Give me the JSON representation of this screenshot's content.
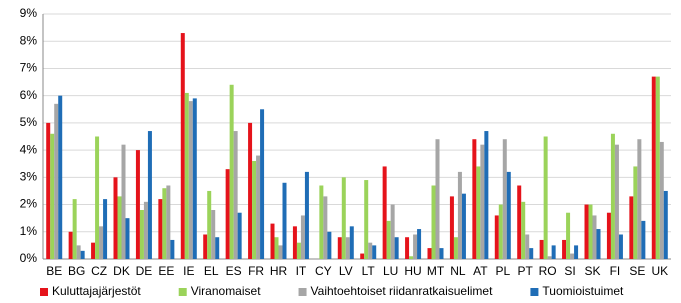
{
  "chart_data": {
    "type": "bar",
    "categories": [
      "BE",
      "BG",
      "CZ",
      "DK",
      "DE",
      "EE",
      "IE",
      "EL",
      "ES",
      "FR",
      "HR",
      "IT",
      "CY",
      "LV",
      "LT",
      "LU",
      "HU",
      "MT",
      "NL",
      "AT",
      "PL",
      "PT",
      "RO",
      "SI",
      "SK",
      "FI",
      "SE",
      "UK"
    ],
    "series": [
      {
        "name": "Kuluttajajärjestöt",
        "color": "#e5131b",
        "values": [
          5.0,
          1.0,
          0.6,
          3.0,
          4.0,
          2.2,
          8.3,
          0.9,
          3.3,
          5.0,
          1.3,
          1.2,
          0,
          0.8,
          0.2,
          3.4,
          0.8,
          0.4,
          2.3,
          4.4,
          1.6,
          2.7,
          0.7,
          0.7,
          2.0,
          1.7,
          2.3,
          6.7
        ]
      },
      {
        "name": "Viranomaiset",
        "color": "#9bd35a",
        "values": [
          4.6,
          2.2,
          4.5,
          2.3,
          1.8,
          2.6,
          6.1,
          2.5,
          6.4,
          3.6,
          0.8,
          0.6,
          2.7,
          3.0,
          2.9,
          1.4,
          0.1,
          2.7,
          0.8,
          3.4,
          2.0,
          2.1,
          4.5,
          1.7,
          2.0,
          4.6,
          3.4,
          6.7
        ]
      },
      {
        "name": "Vaihtoehtoiset riidanratkaisuelimet",
        "color": "#a6a6a6",
        "values": [
          5.7,
          0.5,
          1.2,
          4.2,
          2.1,
          2.7,
          5.8,
          1.8,
          4.7,
          3.8,
          0.5,
          1.6,
          2.3,
          0.8,
          0.6,
          2.0,
          0.9,
          4.4,
          3.2,
          4.2,
          4.4,
          0.9,
          0.1,
          0.2,
          1.6,
          4.2,
          4.4,
          4.3
        ]
      },
      {
        "name": "Tuomioistuimet",
        "color": "#1f6db6",
        "values": [
          6.0,
          0.3,
          2.2,
          1.5,
          4.7,
          0.7,
          5.9,
          0.8,
          1.7,
          5.5,
          2.8,
          3.2,
          1.0,
          1.2,
          0.5,
          0.8,
          1.1,
          0.4,
          2.4,
          4.7,
          3.2,
          0.4,
          0.5,
          0.5,
          1.1,
          0.9,
          1.4,
          2.5
        ]
      }
    ],
    "ylim": [
      0,
      9
    ],
    "yticks": [
      {
        "value": 0,
        "label": "0%"
      },
      {
        "value": 1,
        "label": "1%"
      },
      {
        "value": 2,
        "label": "2%"
      },
      {
        "value": 3,
        "label": "3%"
      },
      {
        "value": 4,
        "label": "4%"
      },
      {
        "value": 5,
        "label": "5%"
      },
      {
        "value": 6,
        "label": "6%"
      },
      {
        "value": 7,
        "label": "7%"
      },
      {
        "value": 8,
        "label": "8%"
      },
      {
        "value": 9,
        "label": "9%"
      }
    ],
    "grid": true,
    "legend": "bottom"
  }
}
